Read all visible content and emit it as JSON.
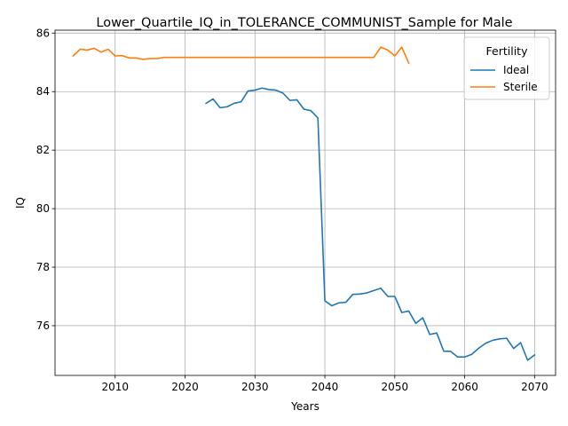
{
  "chart_data": {
    "type": "line",
    "title": "Lower_Quartile_IQ_in_TOLERANCE_COMMUNIST_Sample for Male",
    "xlabel": "Years",
    "ylabel": "IQ",
    "xlim": [
      2001.4,
      2073.0
    ],
    "ylim": [
      74.3,
      86.1
    ],
    "xticks": [
      2010,
      2020,
      2030,
      2040,
      2050,
      2060,
      2070
    ],
    "yticks": [
      76,
      78,
      80,
      82,
      84,
      86
    ],
    "grid": true,
    "legend": {
      "title": "Fertility",
      "placement": "top-right"
    },
    "series": [
      {
        "name": "Ideal",
        "color": "#1f77b4",
        "x": [
          2023,
          2024,
          2025,
          2026,
          2027,
          2028,
          2029,
          2030,
          2031,
          2032,
          2033,
          2034,
          2035,
          2036,
          2037,
          2038,
          2039,
          2040,
          2041,
          2042,
          2043,
          2044,
          2045,
          2046,
          2047,
          2048,
          2049,
          2050,
          2051,
          2052,
          2053,
          2054,
          2055,
          2056,
          2057,
          2058,
          2059,
          2060,
          2061,
          2062,
          2063,
          2064,
          2065,
          2066,
          2067,
          2068,
          2069,
          2070
        ],
        "y": [
          83.6,
          83.75,
          83.45,
          83.48,
          83.6,
          83.65,
          84.02,
          84.05,
          84.12,
          84.07,
          84.05,
          83.95,
          83.7,
          83.72,
          83.4,
          83.35,
          83.1,
          76.85,
          76.68,
          76.78,
          76.8,
          77.07,
          77.08,
          77.12,
          77.2,
          77.28,
          77.0,
          77.0,
          76.45,
          76.5,
          76.08,
          76.27,
          75.7,
          75.75,
          75.13,
          75.12,
          74.93,
          74.93,
          75.02,
          75.23,
          75.4,
          75.5,
          75.55,
          75.57,
          75.22,
          75.42,
          74.82,
          75.0
        ]
      },
      {
        "name": "Sterile",
        "color": "#ff7f0e",
        "x": [
          2004,
          2005,
          2006,
          2007,
          2008,
          2009,
          2010,
          2011,
          2012,
          2013,
          2014,
          2015,
          2016,
          2017,
          2018,
          2019,
          2020,
          2021,
          2022,
          2023,
          2024,
          2025,
          2026,
          2027,
          2028,
          2029,
          2030,
          2031,
          2032,
          2033,
          2034,
          2035,
          2036,
          2037,
          2038,
          2039,
          2040,
          2041,
          2042,
          2043,
          2044,
          2045,
          2046,
          2047,
          2048,
          2049,
          2050,
          2051,
          2052
        ],
        "y": [
          85.22,
          85.45,
          85.42,
          85.48,
          85.35,
          85.45,
          85.22,
          85.23,
          85.15,
          85.15,
          85.1,
          85.13,
          85.13,
          85.17,
          85.17,
          85.17,
          85.17,
          85.17,
          85.17,
          85.17,
          85.17,
          85.17,
          85.17,
          85.17,
          85.17,
          85.17,
          85.17,
          85.17,
          85.17,
          85.17,
          85.17,
          85.17,
          85.17,
          85.17,
          85.17,
          85.17,
          85.17,
          85.17,
          85.17,
          85.17,
          85.17,
          85.17,
          85.17,
          85.17,
          85.52,
          85.42,
          85.22,
          85.52,
          84.97
        ]
      }
    ]
  }
}
